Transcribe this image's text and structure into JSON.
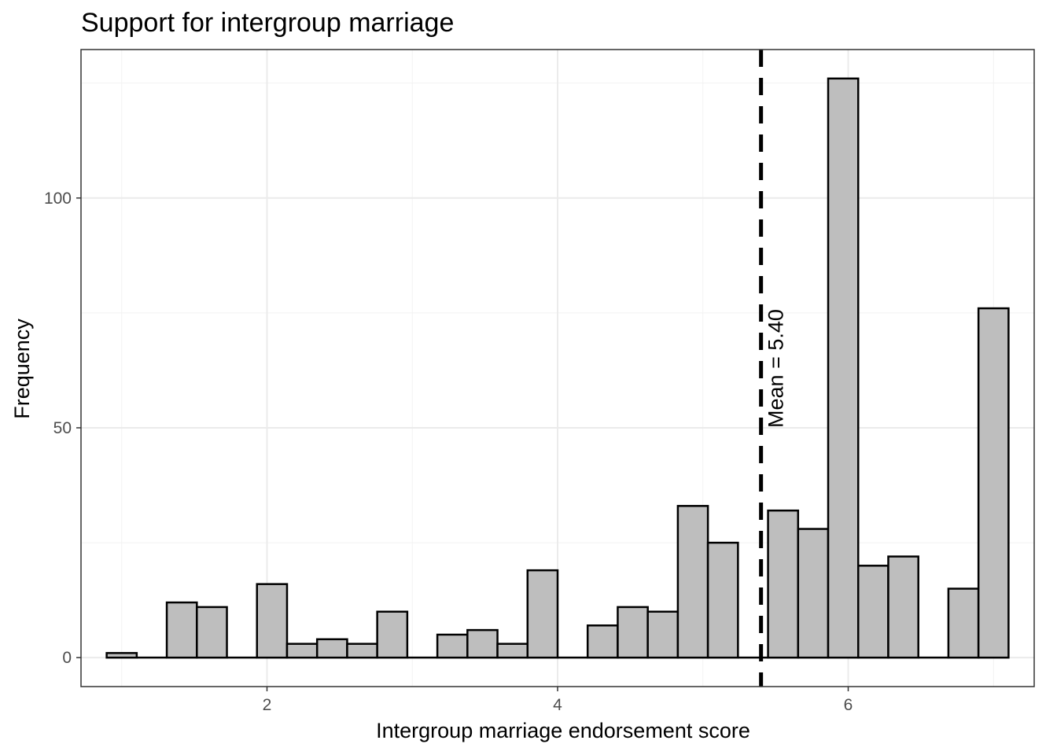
{
  "chart_data": {
    "type": "bar",
    "title": "Support for intergroup marriage",
    "xlabel": "Intergroup marriage endorsement score",
    "ylabel": "Frequency",
    "xlim": [
      0.72,
      7.28
    ],
    "ylim": [
      -6.3,
      132.3
    ],
    "x_ticks": [
      2,
      4,
      6
    ],
    "x_tick_labels": [
      "2",
      "4",
      "6"
    ],
    "y_ticks": [
      0,
      50,
      100
    ],
    "y_tick_labels": [
      "0",
      "50",
      "100"
    ],
    "x_minor_ticks": [
      1,
      3,
      5,
      7
    ],
    "y_minor_ticks": [
      25,
      75,
      125
    ],
    "grid": true,
    "bin_width": 0.2069,
    "bin_centers": [
      1.0,
      1.2069,
      1.4138,
      1.6207,
      1.8276,
      2.0345,
      2.2414,
      2.4483,
      2.6552,
      2.8621,
      3.069,
      3.2759,
      3.4828,
      3.6897,
      3.8966,
      4.1034,
      4.3103,
      4.5172,
      4.7241,
      4.931,
      5.1379,
      5.3448,
      5.5517,
      5.7586,
      5.9655,
      6.1724,
      6.3793,
      6.5862,
      6.7931,
      7.0
    ],
    "values": [
      1,
      0,
      12,
      11,
      0,
      16,
      3,
      4,
      3,
      10,
      0,
      5,
      6,
      3,
      19,
      0,
      7,
      11,
      10,
      33,
      25,
      0,
      32,
      28,
      126,
      20,
      22,
      0,
      15,
      76
    ],
    "bar_fill": "#bebebe",
    "bar_outline": "#000000",
    "mean": 5.4,
    "mean_label": "Mean = 5.40"
  }
}
